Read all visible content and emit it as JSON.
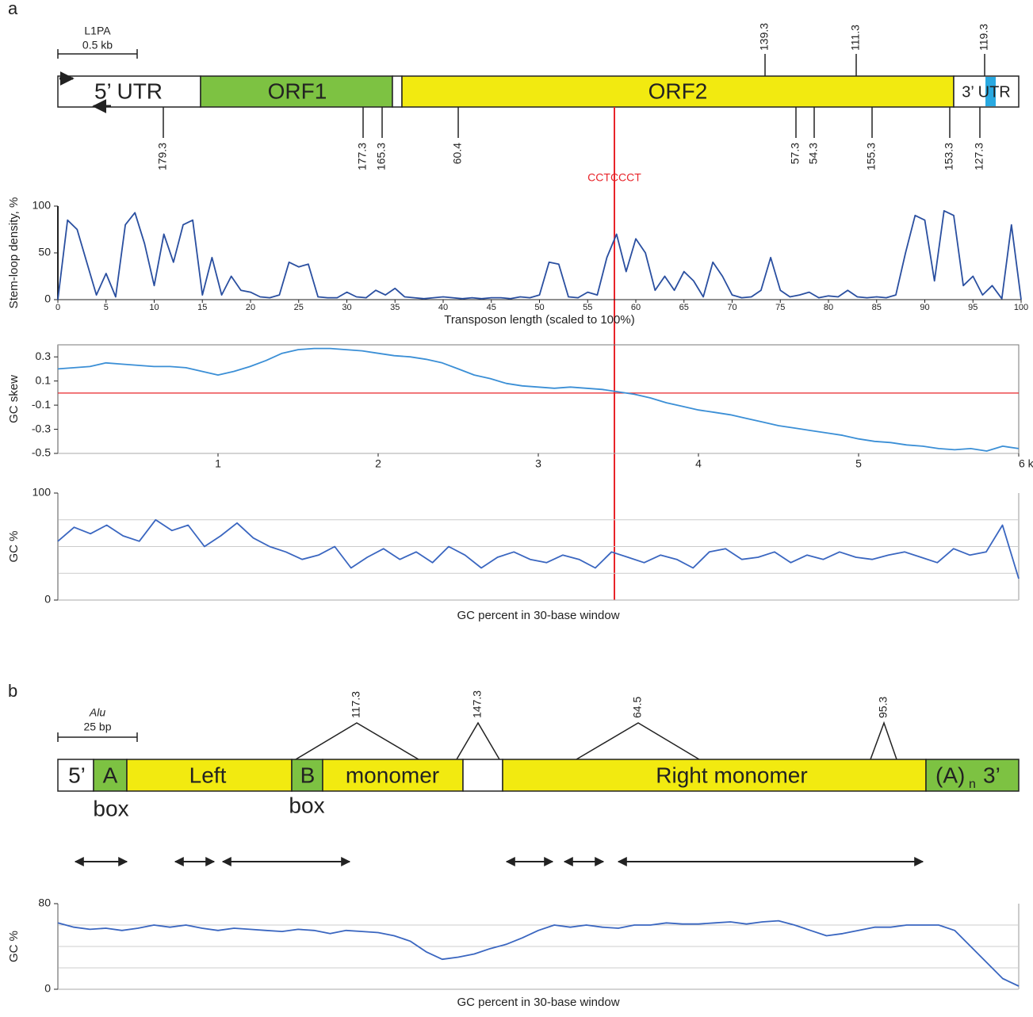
{
  "panel_a": {
    "label": "a",
    "scale_bar": {
      "name": "L1PA",
      "length": "0.5 kb"
    },
    "segments": [
      "5’ UTR",
      "ORF1",
      "ORF2",
      "3’ UTR"
    ],
    "sites_above": [
      "139.3",
      "111.3",
      "119.3"
    ],
    "sites_below": [
      "179.3",
      "177.3",
      "165.3",
      "60.4",
      "57.3",
      "54.3",
      "155.3",
      "153.3",
      "127.3"
    ],
    "marker": "CCTCCCT"
  },
  "panel_b": {
    "label": "b",
    "scale_bar": {
      "name": "Alu",
      "length": "25 bp"
    },
    "segments": [
      "5’",
      "A",
      "Left",
      "B",
      "monomer",
      "Right monomer"
    ],
    "tail": {
      "base": "(A)",
      "subscript": "n",
      "end": "3’"
    },
    "box_labels": [
      "box",
      "box"
    ],
    "sites": [
      "117.3",
      "147.3",
      "64.5",
      "95.3"
    ]
  },
  "chart_data": [
    {
      "type": "line",
      "ylabel": "Stem-loop density, %",
      "xlabel": "Transposon length (scaled to 100%)",
      "color": "#2a4fa0",
      "x": [
        0,
        1,
        2,
        3,
        4,
        5,
        6,
        7,
        8,
        9,
        10,
        11,
        12,
        13,
        14,
        15,
        16,
        17,
        18,
        19,
        20,
        21,
        22,
        23,
        24,
        25,
        26,
        27,
        28,
        29,
        30,
        31,
        32,
        33,
        34,
        35,
        36,
        37,
        38,
        39,
        40,
        41,
        42,
        43,
        44,
        45,
        46,
        47,
        48,
        49,
        50,
        51,
        52,
        53,
        54,
        55,
        56,
        57,
        58,
        59,
        60,
        61,
        62,
        63,
        64,
        65,
        66,
        67,
        68,
        69,
        70,
        71,
        72,
        73,
        74,
        75,
        76,
        77,
        78,
        79,
        80,
        81,
        82,
        83,
        84,
        85,
        86,
        87,
        88,
        89,
        90,
        91,
        92,
        93,
        94,
        95,
        96,
        97,
        98,
        99,
        100
      ],
      "values": [
        0,
        85,
        75,
        40,
        5,
        28,
        3,
        80,
        93,
        60,
        15,
        70,
        40,
        80,
        85,
        5,
        45,
        5,
        25,
        10,
        8,
        3,
        2,
        5,
        40,
        35,
        38,
        3,
        2,
        2,
        8,
        3,
        2,
        10,
        5,
        12,
        3,
        2,
        1,
        2,
        3,
        2,
        1,
        2,
        1,
        2,
        2,
        1,
        3,
        2,
        5,
        40,
        38,
        3,
        2,
        8,
        5,
        45,
        70,
        30,
        65,
        50,
        10,
        25,
        10,
        30,
        20,
        3,
        40,
        25,
        5,
        2,
        3,
        10,
        45,
        10,
        3,
        5,
        8,
        2,
        4,
        3,
        10,
        3,
        2,
        3,
        2,
        5,
        50,
        90,
        85,
        20,
        95,
        90,
        15,
        25,
        5,
        15,
        1,
        80,
        0
      ],
      "xlim": [
        0,
        100
      ],
      "xticks": [
        0,
        5,
        10,
        15,
        20,
        25,
        30,
        35,
        40,
        45,
        50,
        55,
        60,
        65,
        70,
        75,
        80,
        85,
        90,
        95,
        100
      ],
      "ylim": [
        0,
        100
      ],
      "yticks": [
        0,
        50,
        100
      ]
    },
    {
      "type": "line",
      "ylabel": "GC skew",
      "color": "#3b8fd6",
      "hline": {
        "value": 0,
        "color": "#e8242a"
      },
      "x": [
        0,
        0.1,
        0.2,
        0.3,
        0.4,
        0.5,
        0.6,
        0.7,
        0.8,
        0.9,
        1,
        1.1,
        1.2,
        1.3,
        1.4,
        1.5,
        1.6,
        1.7,
        1.8,
        1.9,
        2,
        2.1,
        2.2,
        2.3,
        2.4,
        2.5,
        2.6,
        2.7,
        2.8,
        2.9,
        3,
        3.1,
        3.2,
        3.3,
        3.4,
        3.5,
        3.6,
        3.7,
        3.8,
        3.9,
        4,
        4.1,
        4.2,
        4.3,
        4.4,
        4.5,
        4.6,
        4.7,
        4.8,
        4.9,
        5,
        5.1,
        5.2,
        5.3,
        5.4,
        5.5,
        5.6,
        5.7,
        5.8,
        5.9,
        6
      ],
      "values": [
        0.2,
        0.21,
        0.22,
        0.25,
        0.24,
        0.23,
        0.22,
        0.22,
        0.21,
        0.18,
        0.15,
        0.18,
        0.22,
        0.27,
        0.33,
        0.36,
        0.37,
        0.37,
        0.36,
        0.35,
        0.33,
        0.31,
        0.3,
        0.28,
        0.25,
        0.2,
        0.15,
        0.12,
        0.08,
        0.06,
        0.05,
        0.04,
        0.05,
        0.04,
        0.03,
        0.01,
        -0.01,
        -0.04,
        -0.08,
        -0.11,
        -0.14,
        -0.16,
        -0.18,
        -0.21,
        -0.24,
        -0.27,
        -0.29,
        -0.31,
        -0.33,
        -0.35,
        -0.38,
        -0.4,
        -0.41,
        -0.43,
        -0.44,
        -0.46,
        -0.47,
        -0.46,
        -0.48,
        -0.44,
        -0.46
      ],
      "xlim": [
        0,
        6
      ],
      "xticks": [
        1,
        2,
        3,
        4,
        5,
        {
          "value": 6,
          "label": "6 kb"
        }
      ],
      "ylim": [
        -0.5,
        0.4
      ],
      "yticks": [
        -0.5,
        -0.3,
        -0.1,
        0.1,
        0.3
      ]
    },
    {
      "type": "line",
      "ylabel": "GC %",
      "xlabel": "GC percent in 30-base window",
      "color": "#3a66c0",
      "values": [
        55,
        68,
        62,
        70,
        60,
        55,
        75,
        65,
        70,
        50,
        60,
        72,
        58,
        50,
        45,
        38,
        42,
        50,
        30,
        40,
        48,
        38,
        45,
        35,
        50,
        42,
        30,
        40,
        45,
        38,
        35,
        42,
        38,
        30,
        45,
        40,
        35,
        42,
        38,
        30,
        45,
        48,
        38,
        40,
        45,
        35,
        42,
        38,
        45,
        40,
        38,
        42,
        45,
        40,
        35,
        48,
        42,
        45,
        70,
        20
      ],
      "ylim": [
        0,
        100
      ],
      "yticks": [
        0,
        100
      ],
      "gridlines": [
        25,
        50,
        75
      ]
    },
    {
      "type": "line",
      "ylabel": "GC %",
      "xlabel": "GC percent in 30-base window",
      "color": "#3a66c0",
      "values": [
        62,
        58,
        56,
        57,
        55,
        57,
        60,
        58,
        60,
        57,
        55,
        57,
        56,
        55,
        54,
        56,
        55,
        52,
        55,
        54,
        53,
        50,
        45,
        35,
        28,
        30,
        33,
        38,
        42,
        48,
        55,
        60,
        58,
        60,
        58,
        57,
        60,
        60,
        62,
        61,
        61,
        62,
        63,
        61,
        63,
        64,
        60,
        55,
        50,
        52,
        55,
        58,
        58,
        60,
        60,
        60,
        55,
        40,
        25,
        10,
        3
      ],
      "ylim": [
        0,
        80
      ],
      "yticks": [
        0,
        80
      ],
      "gridlines": [
        20,
        40,
        60
      ]
    }
  ]
}
